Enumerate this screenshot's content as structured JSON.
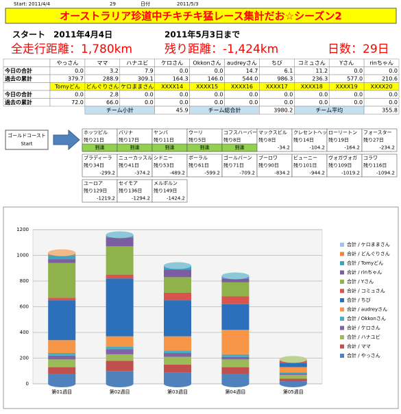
{
  "header": {
    "start_label": "Start: 2011/4/4",
    "days": "29",
    "date_label": "日付",
    "end_date": "2011/5/3"
  },
  "title": "オーストラリア珍道中チキチキ猛レース集計だお☆シーズン2",
  "start_line": {
    "label": "スタート",
    "date": "2011年4月4日",
    "until": "2011年5月3日まで"
  },
  "summary": {
    "total": "全走行距離：1,780km",
    "remaining": "残り距離：-1,424km",
    "days": "日数：29日"
  },
  "table": {
    "names1": [
      "やっさん",
      "ママ",
      "ハナユビ",
      "ケロさん",
      "Okkonさん",
      "audreyさん",
      "ちび",
      "コミュさん",
      "Yさん",
      "rinちゃん"
    ],
    "rows1": [
      {
        "label": "今日の合計",
        "values": [
          "0.0",
          "3.2",
          "7.9",
          "0.0",
          "0.0",
          "14.7",
          "6.1",
          "11.2",
          "0.0",
          "0.0"
        ]
      },
      {
        "label": "過去の累計",
        "values": [
          "379.7",
          "288.9",
          "309.1",
          "164.3",
          "146.0",
          "544.0",
          "986.3",
          "236.3",
          "577.0",
          "210.6"
        ]
      }
    ],
    "names2": [
      "Tomyどん",
      "どんぐりさん",
      "ケロままさん",
      "XXXX14",
      "XXXX15",
      "XXXX16",
      "XXXX17",
      "XXXX18",
      "XXXX19",
      "XXXX20"
    ],
    "rows2": [
      {
        "label": "今日の合計",
        "values": [
          "0.0",
          "2.8",
          "0.0",
          "0.0",
          "0.0",
          "0.0",
          "0.0",
          "0.0",
          "0.0",
          "0.0"
        ]
      },
      {
        "label": "過去の累計",
        "values": [
          "72.0",
          "66.0",
          "0.0",
          "0.0",
          "0.0",
          "0.0",
          "0.0",
          "0.0",
          "0.0",
          "0.0"
        ]
      }
    ],
    "team": {
      "subtotal_label": "チーム小計",
      "subtotal": "45.9",
      "total_label": "チーム総合計",
      "total": "3980.2",
      "average_label": "チーム平均",
      "average": "355.8"
    }
  },
  "route": {
    "start_name": "ゴールドコースト",
    "start_label": "Start",
    "stops": [
      {
        "name": "ホッツピル",
        "remaining": "残り21日",
        "status": "到達"
      },
      {
        "name": "バリナ",
        "remaining": "残り17日",
        "status": "到達"
      },
      {
        "name": "ヤンバ",
        "remaining": "残り11日",
        "status": "到達"
      },
      {
        "name": "ウーリ",
        "remaining": "残り5日",
        "status": "到達"
      },
      {
        "name": "コフスハーバー",
        "remaining": "残り8日",
        "status": "到達"
      },
      {
        "name": "マックスビル",
        "remaining": "残り8日",
        "status": "-34.2"
      },
      {
        "name": "クレセントヘッド",
        "remaining": "残り14日",
        "status": "-104.2"
      },
      {
        "name": "ローリートン",
        "remaining": "残り19日",
        "status": "-164.2"
      },
      {
        "name": "フォースター",
        "remaining": "残り27日",
        "status": "-234.2"
      },
      {
        "name": "ブラディーラ",
        "remaining": "残り34日",
        "status": "-299.2"
      },
      {
        "name": "ニューカッスル",
        "remaining": "残り41日",
        "status": "-374.2"
      },
      {
        "name": "シドニー",
        "remaining": "残り53日",
        "status": "-489.2"
      },
      {
        "name": "ボーラル",
        "remaining": "残り61日",
        "status": "-599.2"
      },
      {
        "name": "ゴールバーン",
        "remaining": "残り71日",
        "status": "-709.2"
      },
      {
        "name": "ブーロワ",
        "remaining": "残り90日",
        "status": "-834.2"
      },
      {
        "name": "ビューニー",
        "remaining": "残り101日",
        "status": "-944.2"
      },
      {
        "name": "ヴォガヴォガ",
        "remaining": "残り109日",
        "status": "-1019.2"
      },
      {
        "name": "コラワ",
        "remaining": "残り116日",
        "status": "-1094.2"
      },
      {
        "name": "ユーロア",
        "remaining": "残り129日",
        "status": "-1219.2"
      },
      {
        "name": "セイモア",
        "remaining": "残り136日",
        "status": "-1294.2"
      },
      {
        "name": "メルボルン",
        "remaining": "残り149日",
        "status": "-1424.2"
      }
    ]
  },
  "chart_data": {
    "type": "bar",
    "stacked": true,
    "categories": [
      "第01週目",
      "第02週目",
      "第03週目",
      "第04週目",
      "第05週目"
    ],
    "ylim": [
      0,
      1200
    ],
    "yticks": [
      0,
      200,
      400,
      600,
      800,
      1000,
      1200
    ],
    "grid": true,
    "series": [
      {
        "name": "合計 / やっさん",
        "color": "#4f81bd",
        "values": [
          80,
          100,
          90,
          80,
          20
        ]
      },
      {
        "name": "合計 / ママ",
        "color": "#c0504d",
        "values": [
          50,
          80,
          60,
          50,
          20
        ]
      },
      {
        "name": "合計 / ハナユビ",
        "color": "#9bbb59",
        "values": [
          60,
          50,
          60,
          60,
          30
        ]
      },
      {
        "name": "合計 / ケロさん",
        "color": "#8064a2",
        "values": [
          30,
          40,
          30,
          20,
          10
        ]
      },
      {
        "name": "合計 / Okkonさん",
        "color": "#4bacc6",
        "values": [
          20,
          20,
          20,
          20,
          10
        ]
      },
      {
        "name": "合計 / audreyさん",
        "color": "#f79646",
        "values": [
          100,
          80,
          110,
          190,
          40
        ]
      },
      {
        "name": "合計 / ちび",
        "color": "#2c6fbb",
        "values": [
          310,
          450,
          280,
          200,
          30
        ]
      },
      {
        "name": "合計 / コミュさん",
        "color": "#d9534f",
        "values": [
          20,
          30,
          60,
          60,
          20
        ]
      },
      {
        "name": "合計 / Yさん",
        "color": "#8fb34a",
        "values": [
          270,
          220,
          120,
          110,
          10
        ]
      },
      {
        "name": "合計 / rinちゃん",
        "color": "#7a5ea0",
        "values": [
          30,
          70,
          60,
          30,
          0
        ]
      },
      {
        "name": "合計 / Tomyどん",
        "color": "#3fa4c0",
        "values": [
          30,
          20,
          30,
          20,
          0
        ]
      },
      {
        "name": "合計 / どんぐりさん",
        "color": "#e8883c",
        "values": [
          20,
          0,
          0,
          0,
          0
        ]
      },
      {
        "name": "合計 / ケロままさん",
        "color": "#a5c3e8",
        "values": [
          0,
          0,
          0,
          0,
          0
        ]
      }
    ]
  }
}
